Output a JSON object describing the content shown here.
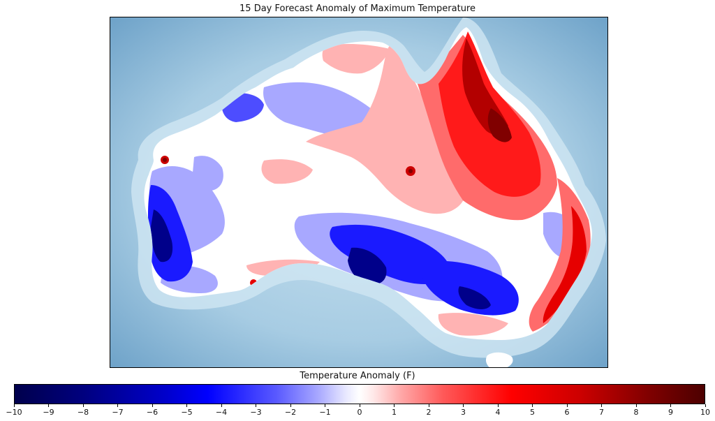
{
  "title": "15 Day Forecast Anomaly of Maximum Temperature",
  "colorbar": {
    "label": "Temperature Anomaly (F)",
    "ticks": [
      "−10",
      "−9",
      "−8",
      "−7",
      "−6",
      "−5",
      "−4",
      "−3",
      "−2",
      "−1",
      "0",
      "1",
      "2",
      "3",
      "4",
      "5",
      "6",
      "7",
      "8",
      "9",
      "10"
    ],
    "min": -10,
    "max": 10,
    "colors": {
      "cold_extreme": "#00004c",
      "cold": "#0000ff",
      "cool": "#a8a8ff",
      "neutral": "#ffffff",
      "warm": "#ffa8a8",
      "hot": "#ff0000",
      "hot_extreme": "#4c0000"
    }
  },
  "map": {
    "ocean_color": "#a7cce3",
    "deep_ocean_color": "#6fa3c9"
  }
}
